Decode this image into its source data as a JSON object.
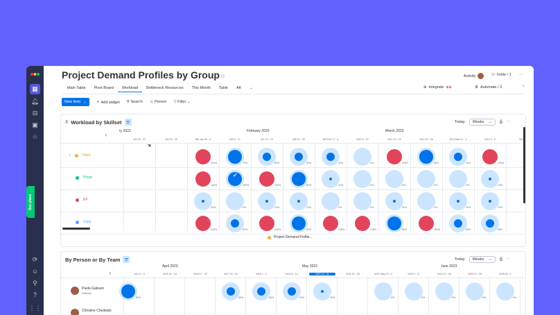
{
  "app": {
    "title": "Project Demand Profiles by Group",
    "activity_label": "Activity",
    "invite_label": "Invite / 1",
    "more_label": "···"
  },
  "tabs": [
    "Main Table",
    "Pivot Board",
    "Workload",
    "Bottleneck Resources",
    "This Month",
    "Table",
    "AK"
  ],
  "active_tab": "Workload",
  "tabs_right": {
    "integrate": "Integrate",
    "automate": "Automate / 2"
  },
  "toolbar": {
    "new_item": "New Item",
    "add_widget": "Add widget",
    "search": "Search",
    "person": "Person",
    "filter": "Filter"
  },
  "sidebar_label": "See plans",
  "workload": {
    "title": "Workload by Skillset",
    "today": "Today",
    "range": "Weeks",
    "months": [
      "ry 2023",
      "February 2023",
      "March 2023"
    ],
    "weeks": [
      "W5 Jan 30 - 5",
      "W6 6 - 12",
      "W7 13 - 19",
      "W8 20 - 26",
      "W9 Feb 27 - 5",
      "W10 6 - 12",
      "W11 13 - 19",
      "W12 20 - 26",
      "W13 Mar 27 - 2",
      "W14 3 - 9",
      "W15"
    ],
    "weeks_prior": [
      "W3 16 - 22",
      "W4 23 - 29"
    ],
    "legend": "Project Demand Profile...",
    "colors": {
      "over": "#e2445c",
      "full": "#0073ea",
      "under": "#cce5ff",
      "ring": "#cce5ff"
    },
    "rows": [
      {
        "label": "Video",
        "color": "#fdab3d",
        "cells": [
          {
            "t": "over",
            "p": "130%"
          },
          {
            "t": "full",
            "p": "70%"
          },
          {
            "t": "mid",
            "p": "60%"
          },
          {
            "t": "mid",
            "p": "30%"
          },
          {
            "t": "mid",
            "p": "10%"
          },
          {
            "t": "light",
            "p": "0%"
          },
          {
            "t": "over",
            "p": "100%"
          },
          {
            "t": "full",
            "p": "80%"
          },
          {
            "t": "mid",
            "p": "40%"
          },
          {
            "t": "over",
            "p": "120%"
          }
        ]
      },
      {
        "label": "Photo",
        "color": "#00c875",
        "cells": [
          {
            "t": "over",
            "p": "130%"
          },
          {
            "t": "full",
            "p": "100%"
          },
          {
            "t": "over",
            "p": "120%"
          },
          {
            "t": "full",
            "p": "80%"
          },
          {
            "t": "small",
            "p": "10%"
          },
          {
            "t": "light",
            "p": "0%"
          },
          {
            "t": "light",
            "p": "0%"
          },
          {
            "t": "light",
            "p": "0%"
          },
          {
            "t": "light",
            "p": "0%"
          },
          {
            "t": "small",
            "p": "10%"
          }
        ]
      },
      {
        "label": "EP",
        "color": "#e2445c",
        "cells": [
          {
            "t": "small",
            "p": "20%"
          },
          {
            "t": "light",
            "p": "0%"
          },
          {
            "t": "small",
            "p": "20%"
          },
          {
            "t": "small",
            "p": "10%"
          },
          {
            "t": "light",
            "p": "0%"
          },
          {
            "t": "light",
            "p": "0%"
          },
          {
            "t": "small",
            "p": "20%"
          },
          {
            "t": "light",
            "p": "0%"
          },
          {
            "t": "small",
            "p": "10%"
          },
          {
            "t": "small",
            "p": "10%"
          }
        ]
      },
      {
        "label": "Copy",
        "color": "#579bfc",
        "cells": [
          {
            "t": "over",
            "p": "130%"
          },
          {
            "t": "mid",
            "p": "50%"
          },
          {
            "t": "over",
            "p": "130%"
          },
          {
            "t": "full",
            "p": "80%"
          },
          {
            "t": "over",
            "p": "130%"
          },
          {
            "t": "over",
            "p": "130%"
          },
          {
            "t": "full",
            "p": "80%"
          },
          {
            "t": "over",
            "p": "100%"
          },
          {
            "t": "mid",
            "p": "50%"
          },
          {
            "t": "mid",
            "p": "60%"
          }
        ]
      }
    ]
  },
  "by_person": {
    "title": "By Person or By Team",
    "today": "Today",
    "range": "Weeks",
    "months": [
      "April 2023",
      "May 2023",
      "June 2023"
    ],
    "weeks": [
      "W14 3 - 9",
      "W15 10 - 16",
      "W16 17 - 23",
      "W17 24 - 30",
      "W18 1 - 7",
      "W19 8 - 14",
      "W20 15 - 21",
      "W21 22 - 28",
      "W22 May 29 - 4",
      "W23 5 - 11",
      "W24 12 - 18",
      "W25 19 - 25",
      "W26 26 - 2"
    ],
    "current_week": "W20 15 - 21",
    "people": [
      {
        "name": "Paola Gatearo",
        "sub": "Director"
      },
      {
        "name": "Christine Chedwick",
        "sub": ""
      }
    ],
    "cells": [
      {
        "t": "full",
        "p": "50%"
      },
      {
        "t": "mid",
        "p": "50%"
      },
      {
        "t": "mid",
        "p": "50%"
      },
      {
        "t": "mid",
        "p": "20%"
      },
      {
        "t": "small",
        "p": "20%"
      },
      {
        "t": "light",
        "p": "0%"
      },
      {
        "t": "light",
        "p": "0%"
      },
      {
        "t": "light",
        "p": "0%"
      },
      {
        "t": "light",
        "p": "0%"
      },
      {
        "t": "light",
        "p": "0%"
      }
    ]
  }
}
